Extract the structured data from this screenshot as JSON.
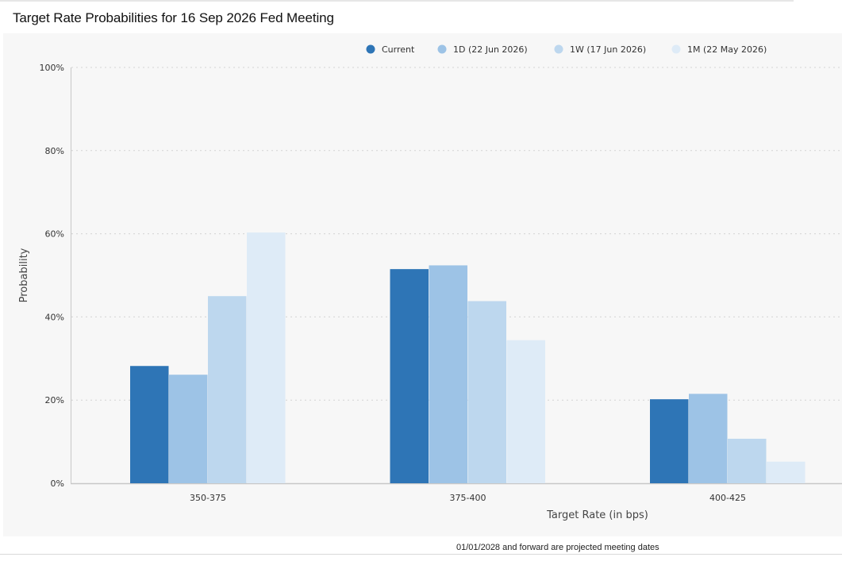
{
  "chart_data": {
    "type": "bar",
    "title": "Target Rate Probabilities for 16 Sep 2026 Fed Meeting",
    "xlabel": "Target Rate (in bps)",
    "ylabel": "Probability",
    "categories": [
      "350-375",
      "375-400",
      "400-425"
    ],
    "ylim": [
      0,
      100
    ],
    "yticks": [
      "0%",
      "20%",
      "40%",
      "60%",
      "80%",
      "100%"
    ],
    "yticks_values": [
      0,
      20,
      40,
      60,
      80,
      100
    ],
    "grid": true,
    "legend_position": "top-right",
    "series": [
      {
        "name": "Current",
        "color": "#2e75b6",
        "values": [
          28.2,
          51.5,
          20.2
        ]
      },
      {
        "name": "1D (22 Jun 2026)",
        "color": "#9dc3e6",
        "values": [
          26.1,
          52.4,
          21.5
        ]
      },
      {
        "name": "1W (17 Jun 2026)",
        "color": "#bdd7ee",
        "values": [
          45.0,
          43.8,
          10.7
        ]
      },
      {
        "name": "1M (22 May 2026)",
        "color": "#deebf7",
        "values": [
          60.3,
          34.4,
          5.2
        ]
      }
    ]
  },
  "footnote": "01/01/2028 and forward are projected meeting dates"
}
